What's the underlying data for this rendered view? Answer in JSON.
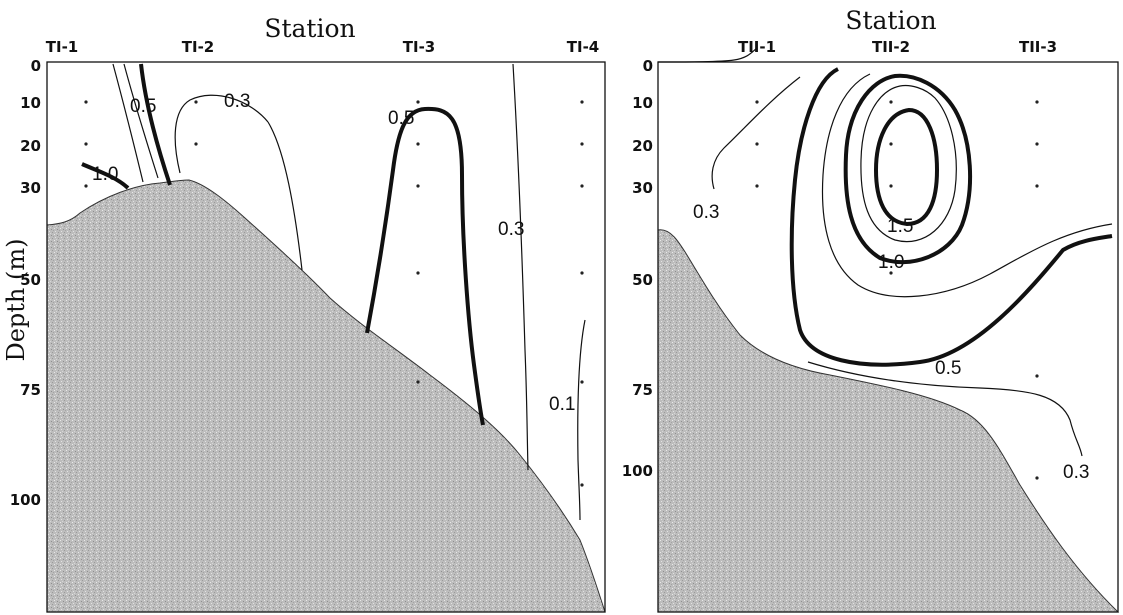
{
  "figure": {
    "y_axis_label": "Depth (m)"
  },
  "chart_data": [
    {
      "type": "contour",
      "title": "Station",
      "xlabel": "",
      "ylabel": "Depth (m)",
      "stations": [
        "TI-1",
        "TI-2",
        "TI-3",
        "TI-4"
      ],
      "y_ticks": [
        0,
        10,
        20,
        30,
        50,
        75,
        100
      ],
      "ylim": [
        0,
        126
      ],
      "y_inverted": true,
      "sample_points": [
        {
          "station": "TI-1",
          "depth": 10
        },
        {
          "station": "TI-1",
          "depth": 20
        },
        {
          "station": "TI-1",
          "depth": 30
        },
        {
          "station": "TI-2",
          "depth": 10
        },
        {
          "station": "TI-2",
          "depth": 20
        },
        {
          "station": "TI-3",
          "depth": 10
        },
        {
          "station": "TI-3",
          "depth": 20
        },
        {
          "station": "TI-3",
          "depth": 30
        },
        {
          "station": "TI-3",
          "depth": 50
        },
        {
          "station": "TI-3",
          "depth": 75
        },
        {
          "station": "TI-4",
          "depth": 10
        },
        {
          "station": "TI-4",
          "depth": 20
        },
        {
          "station": "TI-4",
          "depth": 30
        },
        {
          "station": "TI-4",
          "depth": 50
        },
        {
          "station": "TI-4",
          "depth": 75
        },
        {
          "station": "TI-4",
          "depth": 100
        }
      ],
      "contour_labels": [
        "0.5",
        "0.3",
        "1.0",
        "0.5",
        "0.3",
        "0.1"
      ],
      "contour_levels": [
        0.1,
        0.3,
        0.5,
        1.0
      ],
      "bold_levels": [
        0.5,
        1.0
      ],
      "grid": false
    },
    {
      "type": "contour",
      "title": "Station",
      "xlabel": "",
      "ylabel": "",
      "stations": [
        "TII-1",
        "TII-2",
        "TII-3"
      ],
      "y_ticks": [
        0,
        10,
        20,
        30,
        50,
        75,
        100
      ],
      "ylim": [
        0,
        126
      ],
      "y_inverted": true,
      "sample_points": [
        {
          "station": "TII-1",
          "depth": 10
        },
        {
          "station": "TII-1",
          "depth": 20
        },
        {
          "station": "TII-1",
          "depth": 30
        },
        {
          "station": "TII-2",
          "depth": 10
        },
        {
          "station": "TII-2",
          "depth": 20
        },
        {
          "station": "TII-2",
          "depth": 30
        },
        {
          "station": "TII-2",
          "depth": 50
        },
        {
          "station": "TII-3",
          "depth": 10
        },
        {
          "station": "TII-3",
          "depth": 20
        },
        {
          "station": "TII-3",
          "depth": 30
        },
        {
          "station": "TII-3",
          "depth": 75
        },
        {
          "station": "TII-3",
          "depth": 100
        }
      ],
      "contour_labels": [
        "0.3",
        "1.5",
        "1.0",
        "0.5",
        "0.3"
      ],
      "contour_levels": [
        0.3,
        0.5,
        1.0,
        1.5
      ],
      "bold_levels": [
        0.5,
        1.0,
        1.5
      ],
      "grid": false
    }
  ]
}
